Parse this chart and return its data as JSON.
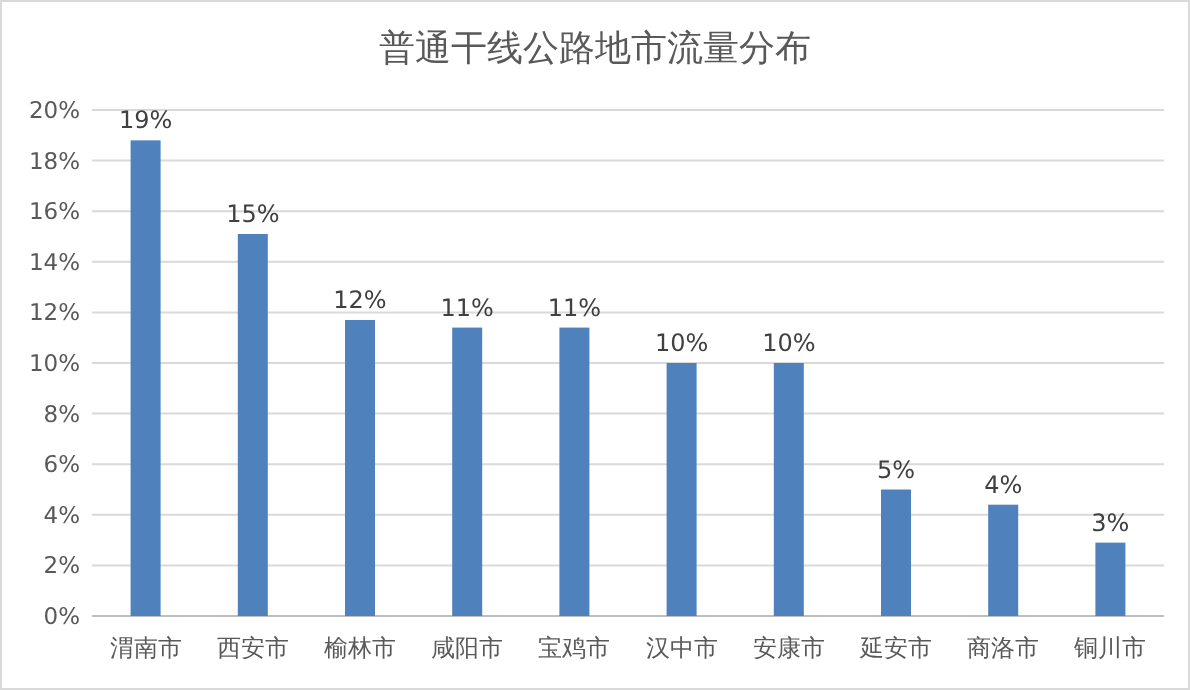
{
  "chart_data": {
    "type": "bar",
    "title": "普通干线公路地市流量分布",
    "categories": [
      "渭南市",
      "西安市",
      "榆林市",
      "咸阳市",
      "宝鸡市",
      "汉中市",
      "安康市",
      "延安市",
      "商洛市",
      "铜川市"
    ],
    "values": [
      18.8,
      15.1,
      11.7,
      11.4,
      11.4,
      10.0,
      10.0,
      5.0,
      4.4,
      2.9
    ],
    "value_labels": [
      "19%",
      "15%",
      "12%",
      "11%",
      "11%",
      "10%",
      "10%",
      "5%",
      "4%",
      "3%"
    ],
    "color": "#4f81bd",
    "ylim": [
      0,
      20
    ],
    "yticks": [
      {
        "value": 0,
        "label": "0%"
      },
      {
        "value": 2,
        "label": "2%"
      },
      {
        "value": 4,
        "label": "4%"
      },
      {
        "value": 6,
        "label": "6%"
      },
      {
        "value": 8,
        "label": "8%"
      },
      {
        "value": 10,
        "label": "10%"
      },
      {
        "value": 12,
        "label": "12%"
      },
      {
        "value": 14,
        "label": "14%"
      },
      {
        "value": 16,
        "label": "16%"
      },
      {
        "value": 18,
        "label": "18%"
      },
      {
        "value": 20,
        "label": "20%"
      }
    ],
    "grid": "y"
  }
}
